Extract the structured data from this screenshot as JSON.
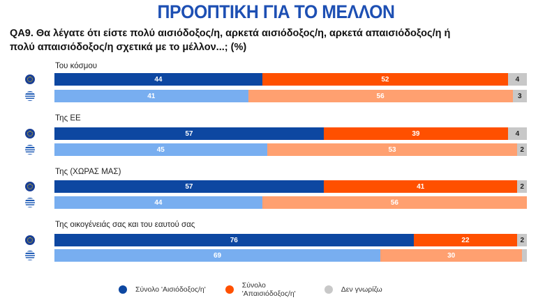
{
  "title": "ΠΡΟΟΠΤΙΚΗ ΓΙΑ ΤΟ ΜΕΛΛΟΝ",
  "question": "QA9. Θα λέγατε ότι είστε πολύ αισιόδοξος/η, αρκετά αισιόδοξος/η, αρκετά απαισιόδοξος/η ή πολύ απαισιόδοξος/η σχετικά με το μέλλον...; (%)",
  "chart_data": {
    "type": "bar",
    "orientation": "horizontal-stacked",
    "xlim": [
      0,
      100
    ],
    "colors": {
      "eu": [
        "#0d47a1",
        "#ff5000",
        "#c8c8c8"
      ],
      "gr": [
        "#78aef0",
        "#ffa070",
        "#c8c8c8"
      ]
    },
    "row_icons": {
      "eu": "eu-flag-icon",
      "gr": "greece-flag-icon"
    },
    "legend": [
      "Σύνολο 'Αισιόδοξος/η'",
      "Σύνολο 'Απαισιόδοξος/η'",
      "Δεν γνωρίζω"
    ],
    "legend_placement": "bottom",
    "groups": [
      {
        "label": "Του κόσμου",
        "eu": [
          44,
          52,
          4
        ],
        "gr": [
          41,
          56,
          3
        ]
      },
      {
        "label": "Της ΕΕ",
        "eu": [
          57,
          39,
          4
        ],
        "gr": [
          45,
          53,
          2
        ]
      },
      {
        "label": "Της (ΧΩΡΑΣ ΜΑΣ)",
        "eu": [
          57,
          41,
          2
        ],
        "gr": [
          44,
          56,
          0
        ]
      },
      {
        "label": "Της οικογένειάς σας και του εαυτού σας",
        "eu": [
          76,
          22,
          2
        ],
        "gr": [
          69,
          30,
          1
        ]
      }
    ]
  }
}
